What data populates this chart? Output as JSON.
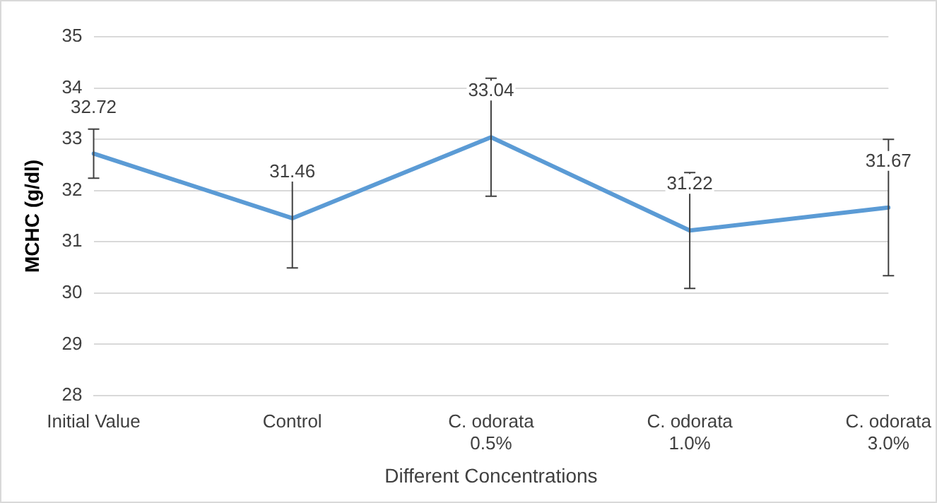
{
  "chart_data": {
    "type": "line",
    "xlabel": "Different Concentrations",
    "ylabel": "MCHC (g/dl)",
    "categories": [
      "Initial Value",
      "Control",
      "C. odorata 0.5%",
      "C. odorata 1.0%",
      "C. odorata 3.0%"
    ],
    "series": [
      {
        "color": "#5b9bd5",
        "values": [
          32.72,
          31.46,
          33.04,
          31.22,
          31.67
        ],
        "errors": [
          0.48,
          0.97,
          1.15,
          1.13,
          1.33
        ]
      }
    ],
    "ylim": [
      28,
      35
    ],
    "yticks": [
      28,
      29,
      30,
      31,
      32,
      33,
      34,
      35
    ],
    "grid": "y",
    "legend": false,
    "marker": "none",
    "data_labels": true
  }
}
